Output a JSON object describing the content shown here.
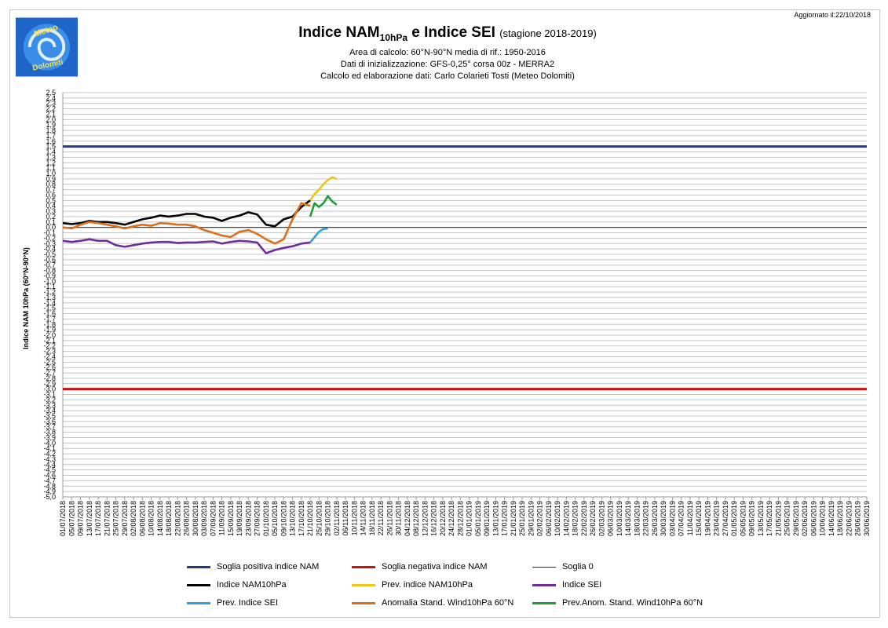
{
  "updated": "Aggiornato il:22/10/2018",
  "logo": {
    "line1": "Meteo",
    "line2": "Dolomiti",
    "bg": "#1f64c8"
  },
  "title": {
    "main": "Indice NAM",
    "sub": "10hPa",
    "rest": " e Indice SEI",
    "season": "(stagione 2018-2019)"
  },
  "subtitle_lines": [
    "Area di calcolo: 60°N-90°N media di rif.: 1950-2016",
    "Dati di inizializzazione: GFS-0,25° corsa 00z - MERRA2",
    "Calcolo ed elaborazione dati: Carlo Colarieti Tosti (Meteo Dolomiti)"
  ],
  "chart_data": {
    "type": "line",
    "ylabel": "Indice NAM 10hPa (60°N-90°N)",
    "ylim": [
      -5.0,
      2.5
    ],
    "ytick_step": 0.1,
    "grid": true,
    "x_start": "01/07/2018",
    "x_end": "30/06/2019",
    "x_tick_labels": [
      "01/07/2018",
      "05/07/2018",
      "09/07/2018",
      "13/07/2018",
      "17/07/2018",
      "21/07/2018",
      "25/07/2018",
      "29/07/2018",
      "02/08/2018",
      "06/08/2018",
      "10/08/2018",
      "14/08/2018",
      "18/08/2018",
      "22/08/2018",
      "26/08/2018",
      "30/08/2018",
      "03/09/2018",
      "07/09/2018",
      "11/09/2018",
      "15/09/2018",
      "19/09/2018",
      "23/09/2018",
      "27/09/2018",
      "01/10/2018",
      "05/10/2018",
      "09/10/2018",
      "13/10/2018",
      "17/10/2018",
      "21/10/2018",
      "25/10/2018",
      "29/10/2018",
      "02/11/2018",
      "06/11/2018",
      "10/11/2018",
      "14/11/2018",
      "18/11/2018",
      "22/11/2018",
      "26/11/2018",
      "30/11/2018",
      "04/12/2018",
      "08/12/2018",
      "12/12/2018",
      "16/12/2018",
      "20/12/2018",
      "24/12/2018",
      "28/12/2018",
      "01/01/2019",
      "05/01/2019",
      "09/01/2019",
      "13/01/2019",
      "17/01/2019",
      "21/01/2019",
      "25/01/2019",
      "29/01/2019",
      "02/02/2019",
      "06/02/2019",
      "10/02/2019",
      "14/02/2019",
      "18/02/2019",
      "22/02/2019",
      "26/02/2019",
      "02/03/2019",
      "06/03/2019",
      "10/03/2019",
      "14/03/2019",
      "18/03/2019",
      "22/03/2019",
      "26/03/2019",
      "30/03/2019",
      "03/04/2019",
      "07/04/2019",
      "11/04/2019",
      "15/04/2019",
      "19/04/2019",
      "23/04/2019",
      "27/04/2019",
      "01/05/2019",
      "05/05/2019",
      "09/05/2019",
      "13/05/2019",
      "17/05/2019",
      "21/05/2019",
      "25/05/2019",
      "29/05/2019",
      "02/06/2019",
      "06/06/2019",
      "10/06/2019",
      "14/06/2019",
      "18/06/2019",
      "22/06/2019",
      "26/06/2019",
      "30/06/2019"
    ],
    "thresholds": [
      {
        "name": "Soglia positiva indice NAM",
        "value": 1.5,
        "color": "#1f3f73"
      },
      {
        "name": "Soglia negativa indice NAM",
        "value": -3.0,
        "color": "#d01010"
      },
      {
        "name": "Soglia 0",
        "value": 0.0,
        "color": "#333333"
      }
    ],
    "series": [
      {
        "name": "Indice NAM10hPa",
        "color": "#000000",
        "x": [
          "01/07/2018",
          "05/07/2018",
          "09/07/2018",
          "13/07/2018",
          "17/07/2018",
          "21/07/2018",
          "25/07/2018",
          "29/07/2018",
          "02/08/2018",
          "06/08/2018",
          "10/08/2018",
          "14/08/2018",
          "18/08/2018",
          "22/08/2018",
          "26/08/2018",
          "30/08/2018",
          "03/09/2018",
          "07/09/2018",
          "11/09/2018",
          "15/09/2018",
          "19/09/2018",
          "23/09/2018",
          "27/09/2018",
          "01/10/2018",
          "05/10/2018",
          "09/10/2018",
          "13/10/2018",
          "17/10/2018",
          "21/10/2018"
        ],
        "y": [
          0.08,
          0.06,
          0.08,
          0.12,
          0.1,
          0.1,
          0.08,
          0.05,
          0.1,
          0.15,
          0.18,
          0.22,
          0.2,
          0.22,
          0.25,
          0.25,
          0.2,
          0.18,
          0.12,
          0.18,
          0.22,
          0.28,
          0.24,
          0.05,
          0.02,
          0.15,
          0.2,
          0.38,
          0.5
        ]
      },
      {
        "name": "Prev. indice NAM10hPa",
        "color": "#f2c318",
        "x": [
          "21/10/2018",
          "23/10/2018",
          "25/10/2018",
          "27/10/2018",
          "29/10/2018",
          "31/10/2018",
          "02/11/2018"
        ],
        "y": [
          0.5,
          0.62,
          0.7,
          0.8,
          0.88,
          0.93,
          0.9
        ]
      },
      {
        "name": "Indice SEI",
        "color": "#6f2d9b",
        "x": [
          "01/07/2018",
          "05/07/2018",
          "09/07/2018",
          "13/07/2018",
          "17/07/2018",
          "21/07/2018",
          "25/07/2018",
          "29/07/2018",
          "02/08/2018",
          "06/08/2018",
          "10/08/2018",
          "14/08/2018",
          "18/08/2018",
          "22/08/2018",
          "26/08/2018",
          "30/08/2018",
          "03/09/2018",
          "07/09/2018",
          "11/09/2018",
          "15/09/2018",
          "19/09/2018",
          "23/09/2018",
          "27/09/2018",
          "01/10/2018",
          "05/10/2018",
          "09/10/2018",
          "13/10/2018",
          "17/10/2018",
          "21/10/2018"
        ],
        "y": [
          -0.25,
          -0.27,
          -0.25,
          -0.22,
          -0.25,
          -0.25,
          -0.33,
          -0.36,
          -0.33,
          -0.3,
          -0.28,
          -0.27,
          -0.27,
          -0.29,
          -0.28,
          -0.28,
          -0.27,
          -0.26,
          -0.3,
          -0.27,
          -0.25,
          -0.26,
          -0.28,
          -0.48,
          -0.42,
          -0.38,
          -0.35,
          -0.3,
          -0.28
        ]
      },
      {
        "name": "Prev. Indice SEI",
        "color": "#2fa0dc",
        "x": [
          "21/10/2018",
          "23/10/2018",
          "25/10/2018",
          "27/10/2018",
          "29/10/2018"
        ],
        "y": [
          -0.28,
          -0.18,
          -0.08,
          -0.03,
          -0.02
        ]
      },
      {
        "name": "Anomalia Stand. Wind10hPa 60°N",
        "color": "#d96f1c",
        "x": [
          "01/07/2018",
          "05/07/2018",
          "09/07/2018",
          "13/07/2018",
          "17/07/2018",
          "21/07/2018",
          "25/07/2018",
          "29/07/2018",
          "02/08/2018",
          "06/08/2018",
          "10/08/2018",
          "14/08/2018",
          "18/08/2018",
          "22/08/2018",
          "26/08/2018",
          "30/08/2018",
          "03/09/2018",
          "07/09/2018",
          "11/09/2018",
          "15/09/2018",
          "19/09/2018",
          "23/09/2018",
          "27/09/2018",
          "01/10/2018",
          "05/10/2018",
          "09/10/2018",
          "13/10/2018",
          "17/10/2018",
          "21/10/2018"
        ],
        "y": [
          0.0,
          -0.02,
          0.05,
          0.1,
          0.08,
          0.05,
          0.02,
          -0.02,
          0.02,
          0.05,
          0.03,
          0.08,
          0.07,
          0.05,
          0.05,
          0.02,
          -0.05,
          -0.1,
          -0.15,
          -0.18,
          -0.08,
          -0.05,
          -0.12,
          -0.22,
          -0.3,
          -0.22,
          0.15,
          0.45,
          0.4
        ]
      },
      {
        "name": "Prev.Anom. Stand. Wind10hPa 60°N",
        "color": "#1f9e3a",
        "x": [
          "21/10/2018",
          "23/10/2018",
          "25/10/2018",
          "27/10/2018",
          "29/10/2018",
          "31/10/2018",
          "02/11/2018"
        ],
        "y": [
          0.2,
          0.45,
          0.38,
          0.45,
          0.58,
          0.48,
          0.42
        ]
      }
    ],
    "legend_order": [
      "Soglia positiva indice NAM",
      "Soglia negativa indice NAM",
      "Soglia 0",
      "Indice NAM10hPa",
      "Prev. indice NAM10hPa",
      "Indice SEI",
      "Prev. Indice SEI",
      "Anomalia Stand. Wind10hPa 60°N",
      "Prev.Anom. Stand. Wind10hPa 60°N"
    ]
  }
}
